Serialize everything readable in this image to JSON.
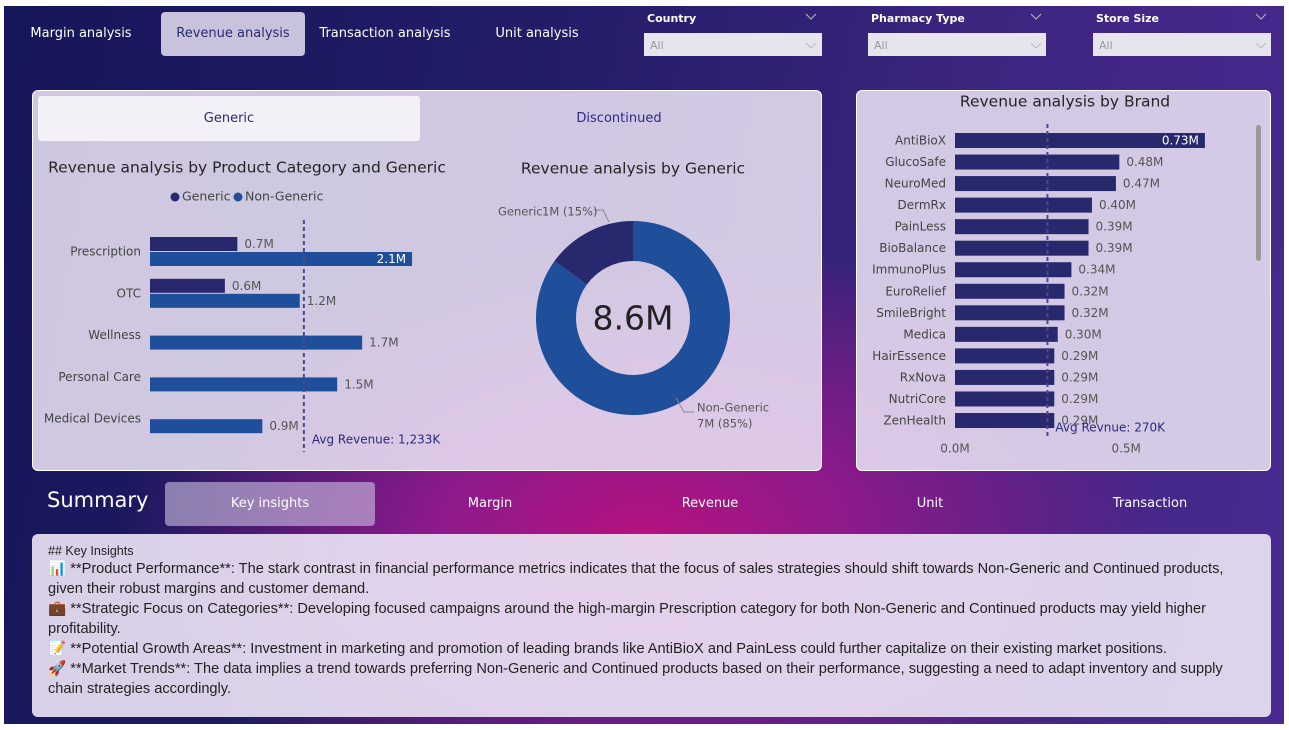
{
  "nav": {
    "tabs": [
      "Margin analysis",
      "Revenue analysis",
      "Transaction analysis",
      "Unit analysis"
    ],
    "selected_index": 1
  },
  "filters": [
    {
      "label": "Country",
      "value": "All"
    },
    {
      "label": "Pharmacy Type",
      "value": "All"
    },
    {
      "label": "Store Size",
      "value": "All"
    }
  ],
  "toggle": {
    "options": [
      "Generic",
      "Discontinued"
    ],
    "selected_index": 0
  },
  "chart_data": [
    {
      "type": "bar",
      "orientation": "horizontal",
      "title": "Revenue analysis by Product Category and Generic",
      "categories": [
        "Prescription",
        "OTC",
        "Wellness",
        "Personal Care",
        "Medical Devices"
      ],
      "series": [
        {
          "name": "Generic",
          "color": "#28286e",
          "values": [
            0.7,
            0.6,
            null,
            null,
            null
          ],
          "value_labels": [
            "0.7M",
            "0.6M",
            null,
            null,
            null
          ]
        },
        {
          "name": "Non-Generic",
          "color": "#1f4f9a",
          "values": [
            2.1,
            1.2,
            1.7,
            1.5,
            0.9
          ],
          "value_labels": [
            "2.1M",
            "1.2M",
            "1.7M",
            "1.5M",
            "0.9M"
          ]
        }
      ],
      "xlim": [
        0,
        2.5
      ],
      "reference_line": {
        "value": 1.233,
        "label": "Avg Revenue: 1,233K"
      },
      "legend": "top"
    },
    {
      "type": "pie",
      "title": "Revenue analysis by Generic",
      "categories": [
        "Generic",
        "Non-Generic"
      ],
      "values": [
        1.29,
        7.31
      ],
      "value_labels": [
        "1M (15%)",
        "7M (85%)"
      ],
      "colors": [
        "#28286e",
        "#1f4f9a"
      ],
      "total_label": "8.6M"
    },
    {
      "type": "bar",
      "orientation": "horizontal",
      "title": "Revenue analysis by Brand",
      "categories": [
        "AntiBioX",
        "GlucoSafe",
        "NeuroMed",
        "DermRx",
        "PainLess",
        "BioBalance",
        "ImmunoPlus",
        "EuroRelief",
        "SmileBright",
        "Medica",
        "HairEssence",
        "RxNova",
        "NutriCore",
        "ZenHealth"
      ],
      "values": [
        0.73,
        0.48,
        0.47,
        0.4,
        0.39,
        0.39,
        0.34,
        0.32,
        0.32,
        0.3,
        0.29,
        0.29,
        0.29,
        0.29
      ],
      "value_labels": [
        "0.73M",
        "0.48M",
        "0.47M",
        "0.40M",
        "0.39M",
        "0.39M",
        "0.34M",
        "0.32M",
        "0.32M",
        "0.30M",
        "0.29M",
        "0.29M",
        "0.29M",
        "0.29M"
      ],
      "color": "#28286e",
      "xlim": [
        0,
        0.85
      ],
      "xticks": [
        {
          "value": 0,
          "label": "0.0M"
        },
        {
          "value": 0.5,
          "label": "0.5M"
        }
      ],
      "reference_line": {
        "value": 0.27,
        "label": "Avg Revnue: 270K"
      }
    }
  ],
  "summary": {
    "title": "Summary",
    "tabs": [
      "Key insights",
      "Margin",
      "Revenue",
      "Unit",
      "Transaction"
    ],
    "selected_index": 0,
    "heading": "## Key Insights",
    "items": [
      "📊 **Product Performance**: The stark contrast in financial performance metrics indicates that the focus of sales strategies should shift towards Non-Generic and Continued products, given their robust margins and customer demand.",
      "💼 **Strategic Focus on Categories**: Developing focused campaigns around the high-margin Prescription category for both Non-Generic and Continued products may yield higher profitability.",
      "📝 **Potential Growth Areas**: Investment in marketing and promotion of leading brands like AntiBioX and PainLess could further capitalize on their existing market positions.",
      "🚀 **Market Trends**: The data implies a trend towards preferring Non-Generic and Continued products based on their performance, suggesting a need to adapt inventory and supply chain strategies accordingly."
    ]
  }
}
